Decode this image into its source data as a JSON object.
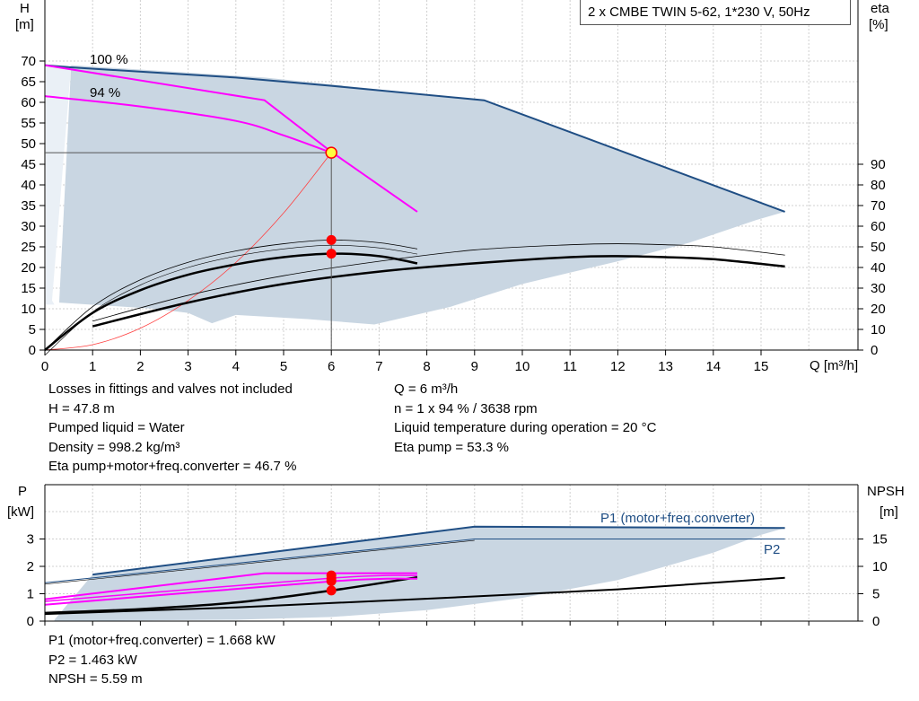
{
  "title": "2 x CMBE TWIN 5-62, 1*230 V, 50Hz",
  "top_chart": {
    "y_left_label_line1": "H",
    "y_left_label_line2": "[m]",
    "y_right_label_line1": "eta",
    "y_right_label_line2": "[%]",
    "x_label": "Q [m³/h]",
    "curve_labels": [
      "100 %",
      "94 %"
    ]
  },
  "bottom_chart": {
    "y_left_label_line1": "P",
    "y_left_label_line2": "[kW]",
    "y_right_label_line1": "NPSH",
    "y_right_label_line2": "[m]",
    "series_labels": [
      "P1 (motor+freq.converter)",
      "P2"
    ]
  },
  "info_left": [
    "Losses in fittings and valves not included",
    "H = 47.8 m",
    "Pumped liquid = Water",
    "Density = 998.2 kg/m³",
    "Eta pump+motor+freq.converter = 46.7 %"
  ],
  "info_right": [
    "Q = 6 m³/h",
    "n = 1 x 94 % / 3638 rpm",
    "Liquid temperature during operation = 20 °C",
    "Eta pump = 53.3 %"
  ],
  "info_bottom": [
    "P1 (motor+freq.converter) = 1.668 kW",
    "P2 = 1.463 kW",
    "NPSH = 5.59 m"
  ],
  "colors": {
    "envelope": "#c9d6e2",
    "envelope_light": "#eaf0f6",
    "max_curve": "#1f4e84",
    "speed_curve": "#ff00ff",
    "system_curve": "#ff4040",
    "duty_point": "#ff0000",
    "duty_marker": "#ffff40",
    "grid": "#d0d0d0"
  },
  "chart_data": [
    {
      "type": "line",
      "name": "Head / efficiency",
      "xlim": [
        0,
        16
      ],
      "ylim": [
        0,
        75
      ],
      "y2lim": [
        0,
        90
      ],
      "xticks": [
        0,
        1,
        2,
        3,
        4,
        5,
        6,
        7,
        8,
        9,
        10,
        11,
        12,
        13,
        14,
        15
      ],
      "yticks": [
        0,
        5,
        10,
        15,
        20,
        25,
        30,
        35,
        40,
        45,
        50,
        55,
        60,
        65,
        70
      ],
      "y2ticks": [
        0,
        10,
        20,
        30,
        40,
        50,
        60,
        70,
        80,
        90
      ],
      "grid": true,
      "operating_point": {
        "q": 6,
        "h": 47.8,
        "eta_pump": 53.3,
        "eta_total": 46.7
      },
      "series": [
        {
          "name": "100 %",
          "axis": "H",
          "x": [
            0,
            4.6,
            6.0,
            7.8
          ],
          "y": [
            69,
            60.5,
            48,
            33.5
          ]
        },
        {
          "name": "94 %",
          "axis": "H",
          "x": [
            0,
            2,
            4,
            5,
            6
          ],
          "y": [
            61.5,
            59,
            55.5,
            52,
            47.8
          ]
        },
        {
          "name": "",
          "axis": "H",
          "x": [
            0,
            0.5,
            4,
            6,
            9.2,
            15.5
          ],
          "y": [
            69,
            68.5,
            66,
            64,
            60.5,
            33.5
          ]
        },
        {
          "name": "",
          "axis": "H",
          "x": [
            0,
            1,
            2,
            3,
            4,
            5,
            6
          ],
          "y": [
            0,
            1.3,
            5.3,
            12,
            21.2,
            33.2,
            47.8
          ]
        },
        {
          "name": "",
          "axis": "eta",
          "x": [
            0,
            1,
            2,
            3,
            4,
            5,
            6,
            7,
            7.8
          ],
          "y": [
            0,
            21,
            34,
            42.5,
            48,
            51.5,
            53.3,
            52,
            49
          ]
        },
        {
          "name": "",
          "axis": "eta",
          "x": [
            0,
            1,
            2,
            3,
            4,
            5,
            6,
            7,
            7.8
          ],
          "y": [
            0,
            18,
            29,
            36.5,
            41.5,
            45,
            46.7,
            45.5,
            42
          ]
        },
        {
          "name": "",
          "axis": "eta",
          "x": [
            1,
            3,
            5,
            7,
            9,
            11,
            12,
            13,
            14,
            15.5
          ],
          "y": [
            11.5,
            23,
            32,
            38,
            42,
            45,
            45.5,
            45,
            44,
            40.5
          ]
        },
        {
          "name": "",
          "axis": "eta",
          "x": [
            1,
            3,
            5,
            7,
            9,
            11,
            12,
            13,
            14,
            15.5
          ],
          "y": [
            14,
            26.5,
            36,
            43,
            48.5,
            51,
            51.5,
            51,
            50,
            46
          ]
        }
      ]
    },
    {
      "type": "line",
      "name": "Power / NPSH",
      "xlim": [
        0,
        16
      ],
      "ylim": [
        0,
        4
      ],
      "y2lim": [
        0,
        20
      ],
      "yticks": [
        0,
        1,
        2,
        3
      ],
      "y2ticks": [
        0,
        5,
        10,
        15
      ],
      "grid": true,
      "operating_point": {
        "q": 6,
        "p1": 1.668,
        "p2": 1.463,
        "npsh": 5.59
      },
      "series": [
        {
          "name": "P1 (motor+freq.converter)",
          "axis": "P",
          "x": [
            1,
            9,
            15.5
          ],
          "y": [
            1.7,
            3.45,
            3.4
          ]
        },
        {
          "name": "P2",
          "axis": "P",
          "x": [
            0,
            9,
            15.5
          ],
          "y": [
            1.4,
            3.0,
            3.0
          ]
        },
        {
          "name": "",
          "axis": "P",
          "x": [
            0,
            4.6,
            7.8
          ],
          "y": [
            0.8,
            1.75,
            1.75
          ]
        },
        {
          "name": "",
          "axis": "P",
          "x": [
            0,
            6,
            7.8
          ],
          "y": [
            0.6,
            1.45,
            1.55
          ]
        },
        {
          "name": "",
          "axis": "NPSH",
          "x": [
            0,
            2,
            4,
            6,
            7.8
          ],
          "y": [
            1.5,
            2.2,
            3.4,
            5.59,
            8.0
          ]
        },
        {
          "name": "",
          "axis": "NPSH",
          "x": [
            0,
            4,
            9,
            12,
            15.5
          ],
          "y": [
            1.3,
            2.5,
            4.5,
            5.8,
            7.9
          ]
        }
      ]
    }
  ]
}
